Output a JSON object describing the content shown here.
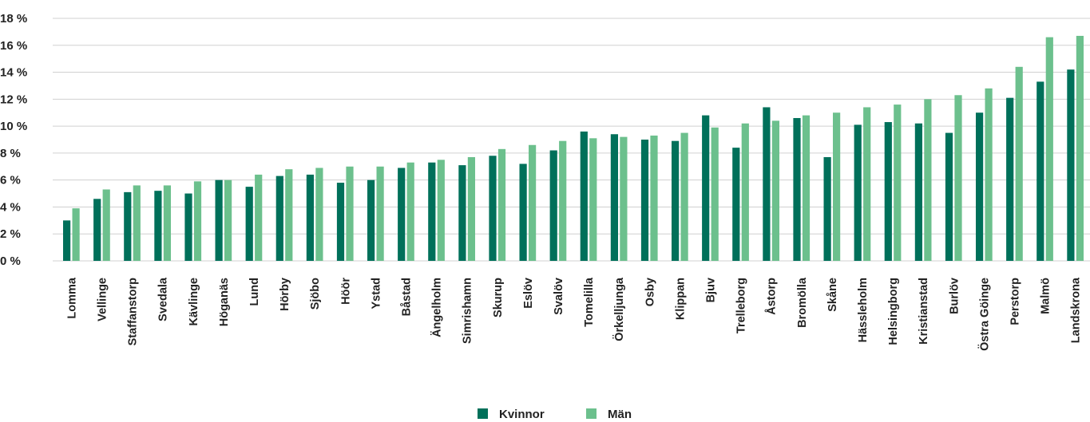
{
  "chart_data": {
    "type": "bar",
    "categories": [
      "Lomma",
      "Vellinge",
      "Staffanstorp",
      "Svedala",
      "Kävlinge",
      "Höganäs",
      "Lund",
      "Hörby",
      "Sjöbo",
      "Höör",
      "Ystad",
      "Båstad",
      "Ängelholm",
      "Simrishamn",
      "Skurup",
      "Eslöv",
      "Svalöv",
      "Tomelilla",
      "Örkelljunga",
      "Osby",
      "Klippan",
      "Bjuv",
      "Trelleborg",
      "Åstorp",
      "Bromölla",
      "Skåne",
      "Hässleholm",
      "Helsingborg",
      "Kristianstad",
      "Burlöv",
      "Östra Göinge",
      "Perstorp",
      "Malmö",
      "Landskrona"
    ],
    "series": [
      {
        "name": "Kvinnor",
        "color": "#00705a",
        "values": [
          3.0,
          4.6,
          5.1,
          5.2,
          5.0,
          6.0,
          5.5,
          6.3,
          6.4,
          5.8,
          6.0,
          6.9,
          7.3,
          7.1,
          7.8,
          7.2,
          8.2,
          9.6,
          9.4,
          9.0,
          8.9,
          10.8,
          8.4,
          11.4,
          10.6,
          7.7,
          10.1,
          10.3,
          10.2,
          9.5,
          11.0,
          12.1,
          13.3,
          14.2
        ]
      },
      {
        "name": "Män",
        "color": "#6cc08d",
        "values": [
          3.9,
          5.3,
          5.6,
          5.6,
          5.9,
          6.0,
          6.4,
          6.8,
          6.9,
          7.0,
          7.0,
          7.3,
          7.5,
          7.7,
          8.3,
          8.6,
          8.9,
          9.1,
          9.2,
          9.3,
          9.5,
          9.9,
          10.2,
          10.4,
          10.8,
          11.0,
          11.4,
          11.6,
          12.0,
          12.3,
          12.8,
          14.4,
          16.6,
          16.7
        ]
      }
    ],
    "ylim": [
      0,
      18
    ],
    "yticks": [
      0,
      2,
      4,
      6,
      8,
      10,
      12,
      14,
      16,
      18
    ],
    "ytick_labels": [
      "0 %",
      "2 %",
      "4 %",
      "6 %",
      "8 %",
      "10 %",
      "12 %",
      "14 %",
      "16 %",
      "18 %"
    ],
    "grid": true,
    "legend_position": "bottom-center"
  }
}
